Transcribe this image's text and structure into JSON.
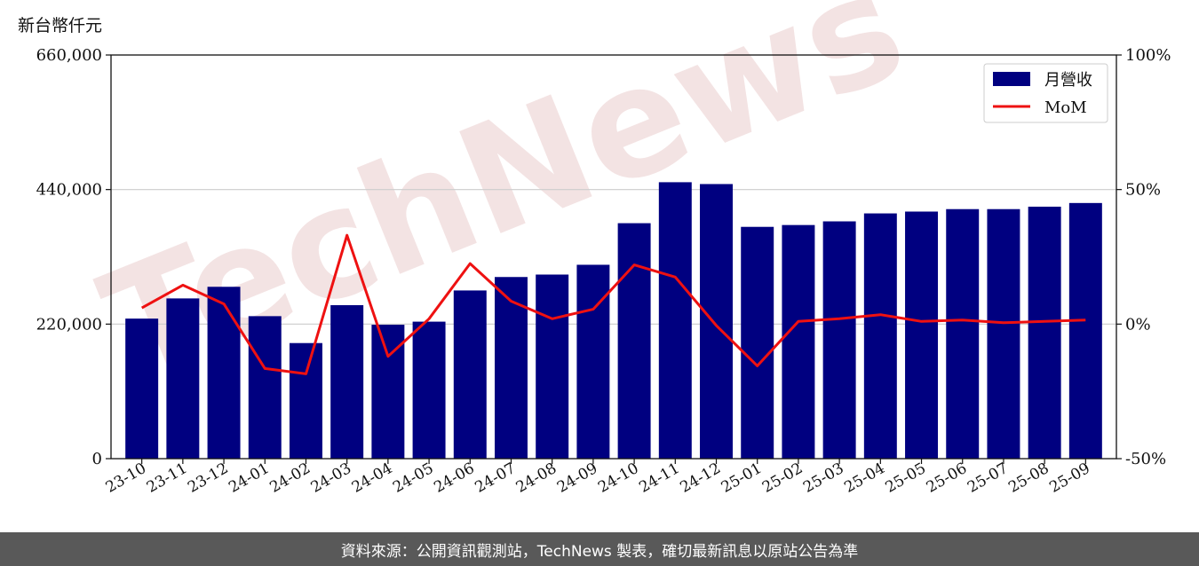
{
  "unit_label": "新台幣仟元",
  "footer_text": "資料來源：公開資訊觀測站，TechNews 製表，確切最新訊息以原站公告為準",
  "watermark_text": "TechNews",
  "colors": {
    "bar": "#000080",
    "line": "#ee1111",
    "grid": "#cccccc",
    "footer_bg": "#595959",
    "watermark": "#f0dada"
  },
  "chart_data": {
    "type": "bar",
    "categories": [
      "23-10",
      "23-11",
      "23-12",
      "24-01",
      "24-02",
      "24-03",
      "24-04",
      "24-05",
      "24-06",
      "24-07",
      "24-08",
      "24-09",
      "24-10",
      "24-11",
      "24-12",
      "25-01",
      "25-02",
      "25-03",
      "25-04",
      "25-05",
      "25-06",
      "25-07",
      "25-08",
      "25-09"
    ],
    "series": [
      {
        "name": "月營收",
        "type": "bar",
        "axis": "left",
        "values": [
          229000,
          262000,
          281000,
          233000,
          189000,
          251000,
          219000,
          224000,
          275000,
          297000,
          301000,
          317000,
          385000,
          452000,
          449000,
          379000,
          382000,
          388000,
          401000,
          404000,
          408000,
          408000,
          412000,
          418000
        ]
      },
      {
        "name": "MoM",
        "type": "line",
        "axis": "right",
        "values": [
          6,
          14.5,
          7.5,
          -16.5,
          -18.5,
          33,
          -12,
          2,
          22.5,
          8.5,
          2,
          5.5,
          22,
          17.5,
          -0.5,
          -15.5,
          1,
          2,
          3.5,
          1,
          1.5,
          0.5,
          1,
          1.5
        ]
      }
    ],
    "y_left": {
      "lim": [
        0,
        660000
      ],
      "ticks": [
        "0",
        "220,000",
        "440,000",
        "660,000"
      ]
    },
    "y_right": {
      "lim": [
        -50,
        100
      ],
      "ticks": [
        "-50%",
        "0%",
        "50%",
        "100%"
      ]
    },
    "grid": "horizontal",
    "legend_position": "top-right",
    "title": "",
    "xlabel": "",
    "ylabel": ""
  }
}
